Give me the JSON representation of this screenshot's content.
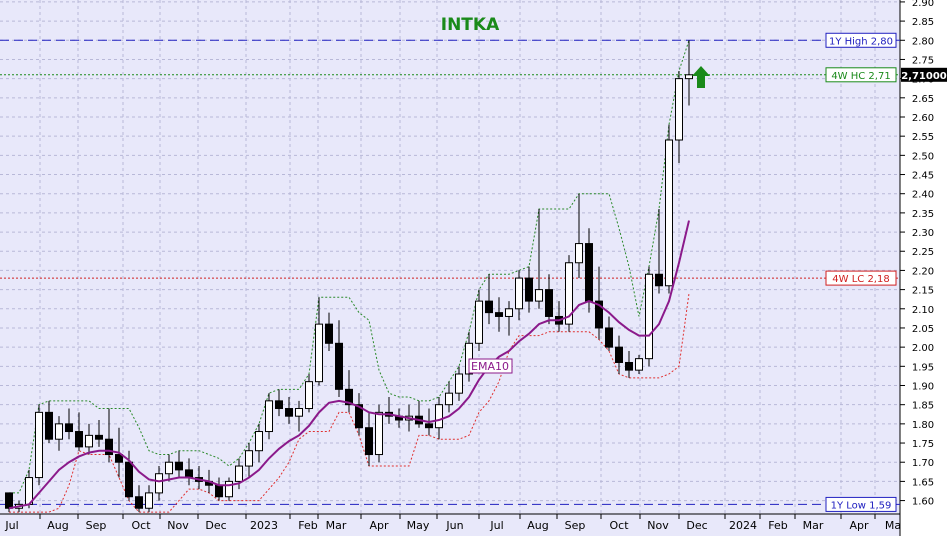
{
  "chart_data": {
    "type": "candlestick",
    "title": "INTKA",
    "title_color": "#1a8a1a",
    "background": "#e8e8fa",
    "x_labels": [
      "Jul",
      "Aug",
      "Sep",
      "Oct",
      "Nov",
      "Dec",
      "2023",
      "Feb",
      "Mar",
      "Apr",
      "May",
      "Jun",
      "Jul",
      "Aug",
      "Sep",
      "Oct",
      "Nov",
      "Dec",
      "2024",
      "Feb",
      "Mar",
      "Apr",
      "Ma"
    ],
    "y_ticks": [
      "1.60",
      "1.65",
      "1.70",
      "1.75",
      "1.80",
      "1.85",
      "1.90",
      "1.95",
      "2.00",
      "2.05",
      "2.10",
      "2.15",
      "2.20",
      "2.25",
      "2.30",
      "2.35",
      "2.40",
      "2.45",
      "2.50",
      "2.55",
      "2.60",
      "2.65",
      "2.70",
      "2.75",
      "2.80",
      "2.85",
      "2.90"
    ],
    "ylim": [
      1.565,
      2.905
    ],
    "levels": [
      {
        "label": "1Y High 2,80",
        "value": 2.8,
        "color": "#2020c0",
        "style": "dashed"
      },
      {
        "label": "4W HC 2,71",
        "value": 2.71,
        "color": "#1a8a1a",
        "style": "dotted"
      },
      {
        "label": "4W LC 2,18",
        "value": 2.18,
        "color": "#d02020",
        "style": "dotted"
      },
      {
        "label": "1Y Low 1,59",
        "value": 1.59,
        "color": "#2020c0",
        "style": "dashed"
      }
    ],
    "last_price": {
      "label": "2,71000",
      "value": 2.71
    },
    "arrow": "up",
    "arrow_color": "#1a8a1a",
    "series": [
      {
        "name": "EMA10",
        "color": "#8b1a8b"
      }
    ],
    "candles": [
      [
        1.62,
        1.62,
        1.57,
        1.58
      ],
      [
        1.58,
        1.6,
        1.57,
        1.59
      ],
      [
        1.59,
        1.68,
        1.58,
        1.66
      ],
      [
        1.66,
        1.85,
        1.64,
        1.83
      ],
      [
        1.83,
        1.86,
        1.75,
        1.76
      ],
      [
        1.76,
        1.82,
        1.73,
        1.8
      ],
      [
        1.8,
        1.84,
        1.76,
        1.78
      ],
      [
        1.78,
        1.83,
        1.73,
        1.74
      ],
      [
        1.74,
        1.8,
        1.72,
        1.77
      ],
      [
        1.77,
        1.81,
        1.74,
        1.76
      ],
      [
        1.76,
        1.84,
        1.7,
        1.72
      ],
      [
        1.72,
        1.79,
        1.66,
        1.7
      ],
      [
        1.7,
        1.73,
        1.6,
        1.61
      ],
      [
        1.61,
        1.64,
        1.57,
        1.58
      ],
      [
        1.58,
        1.64,
        1.57,
        1.62
      ],
      [
        1.62,
        1.69,
        1.6,
        1.67
      ],
      [
        1.67,
        1.72,
        1.65,
        1.7
      ],
      [
        1.7,
        1.73,
        1.66,
        1.68
      ],
      [
        1.68,
        1.71,
        1.64,
        1.66
      ],
      [
        1.66,
        1.69,
        1.63,
        1.65
      ],
      [
        1.65,
        1.68,
        1.62,
        1.64
      ],
      [
        1.64,
        1.66,
        1.6,
        1.61
      ],
      [
        1.61,
        1.66,
        1.6,
        1.65
      ],
      [
        1.65,
        1.71,
        1.63,
        1.69
      ],
      [
        1.69,
        1.75,
        1.66,
        1.73
      ],
      [
        1.73,
        1.8,
        1.7,
        1.78
      ],
      [
        1.78,
        1.88,
        1.76,
        1.86
      ],
      [
        1.86,
        1.89,
        1.82,
        1.84
      ],
      [
        1.84,
        1.87,
        1.8,
        1.82
      ],
      [
        1.82,
        1.86,
        1.78,
        1.84
      ],
      [
        1.84,
        1.93,
        1.83,
        1.91
      ],
      [
        1.91,
        2.13,
        1.9,
        2.06
      ],
      [
        2.06,
        2.09,
        1.99,
        2.01
      ],
      [
        2.01,
        2.07,
        1.87,
        1.89
      ],
      [
        1.89,
        1.94,
        1.83,
        1.85
      ],
      [
        1.85,
        1.88,
        1.77,
        1.79
      ],
      [
        1.79,
        1.83,
        1.69,
        1.72
      ],
      [
        1.72,
        1.85,
        1.7,
        1.83
      ],
      [
        1.83,
        1.87,
        1.8,
        1.82
      ],
      [
        1.82,
        1.84,
        1.79,
        1.81
      ],
      [
        1.81,
        1.85,
        1.78,
        1.82
      ],
      [
        1.82,
        1.86,
        1.79,
        1.8
      ],
      [
        1.8,
        1.84,
        1.77,
        1.79
      ],
      [
        1.79,
        1.87,
        1.76,
        1.85
      ],
      [
        1.85,
        1.91,
        1.83,
        1.88
      ],
      [
        1.88,
        1.95,
        1.86,
        1.93
      ],
      [
        1.93,
        2.04,
        1.91,
        2.01
      ],
      [
        2.01,
        2.15,
        1.99,
        2.12
      ],
      [
        2.12,
        2.19,
        2.06,
        2.09
      ],
      [
        2.09,
        2.13,
        2.04,
        2.08
      ],
      [
        2.08,
        2.12,
        2.03,
        2.1
      ],
      [
        2.1,
        2.2,
        2.07,
        2.18
      ],
      [
        2.18,
        2.21,
        2.09,
        2.12
      ],
      [
        2.12,
        2.36,
        2.1,
        2.15
      ],
      [
        2.15,
        2.19,
        2.06,
        2.08
      ],
      [
        2.08,
        2.12,
        2.04,
        2.06
      ],
      [
        2.06,
        2.24,
        2.04,
        2.22
      ],
      [
        2.22,
        2.4,
        2.18,
        2.27
      ],
      [
        2.27,
        2.31,
        2.09,
        2.12
      ],
      [
        2.12,
        2.21,
        2.02,
        2.05
      ],
      [
        2.05,
        2.08,
        1.99,
        2.0
      ],
      [
        2.0,
        2.03,
        1.93,
        1.96
      ],
      [
        1.96,
        1.99,
        1.92,
        1.94
      ],
      [
        1.94,
        1.98,
        1.93,
        1.97
      ],
      [
        1.97,
        2.21,
        1.95,
        2.19
      ],
      [
        2.19,
        2.36,
        2.14,
        2.16
      ],
      [
        2.16,
        2.58,
        2.14,
        2.54
      ],
      [
        2.54,
        2.72,
        2.48,
        2.7
      ],
      [
        2.7,
        2.8,
        2.63,
        2.71
      ]
    ],
    "ema10": [
      1.58,
      1.585,
      1.59,
      1.62,
      1.65,
      1.68,
      1.7,
      1.715,
      1.725,
      1.73,
      1.73,
      1.725,
      1.705,
      1.675,
      1.655,
      1.65,
      1.655,
      1.66,
      1.66,
      1.655,
      1.65,
      1.64,
      1.64,
      1.645,
      1.66,
      1.68,
      1.71,
      1.735,
      1.755,
      1.77,
      1.795,
      1.83,
      1.855,
      1.86,
      1.855,
      1.845,
      1.83,
      1.825,
      1.825,
      1.82,
      1.815,
      1.81,
      1.805,
      1.81,
      1.82,
      1.84,
      1.87,
      1.915,
      1.95,
      1.975,
      1.99,
      2.015,
      2.035,
      2.06,
      2.07,
      2.07,
      2.08,
      2.11,
      2.12,
      2.11,
      2.09,
      2.065,
      2.045,
      2.03,
      2.03,
      2.06,
      2.12,
      2.22,
      2.33
    ],
    "donchian_upper": [
      1.62,
      1.62,
      1.68,
      1.85,
      1.86,
      1.86,
      1.86,
      1.86,
      1.86,
      1.84,
      1.84,
      1.84,
      1.84,
      1.79,
      1.73,
      1.72,
      1.72,
      1.73,
      1.73,
      1.73,
      1.72,
      1.71,
      1.69,
      1.71,
      1.75,
      1.8,
      1.88,
      1.89,
      1.89,
      1.89,
      1.93,
      2.13,
      2.13,
      2.13,
      2.13,
      2.09,
      2.07,
      1.94,
      1.88,
      1.87,
      1.87,
      1.86,
      1.86,
      1.87,
      1.91,
      1.95,
      2.04,
      2.15,
      2.19,
      2.19,
      2.19,
      2.2,
      2.21,
      2.36,
      2.36,
      2.36,
      2.36,
      2.4,
      2.4,
      2.4,
      2.4,
      2.31,
      2.21,
      2.08,
      2.21,
      2.36,
      2.58,
      2.72,
      2.8
    ],
    "donchian_lower": [
      1.57,
      1.57,
      1.57,
      1.57,
      1.57,
      1.58,
      1.64,
      1.73,
      1.72,
      1.72,
      1.72,
      1.66,
      1.6,
      1.57,
      1.57,
      1.57,
      1.57,
      1.6,
      1.63,
      1.63,
      1.62,
      1.6,
      1.6,
      1.6,
      1.6,
      1.6,
      1.63,
      1.66,
      1.7,
      1.76,
      1.78,
      1.78,
      1.78,
      1.83,
      1.83,
      1.77,
      1.69,
      1.69,
      1.69,
      1.69,
      1.69,
      1.77,
      1.77,
      1.76,
      1.76,
      1.76,
      1.77,
      1.83,
      1.86,
      1.91,
      1.99,
      2.03,
      2.03,
      2.03,
      2.04,
      2.04,
      2.04,
      2.04,
      2.04,
      2.02,
      1.99,
      1.93,
      1.92,
      1.92,
      1.92,
      1.92,
      1.93,
      1.95,
      2.14
    ]
  }
}
